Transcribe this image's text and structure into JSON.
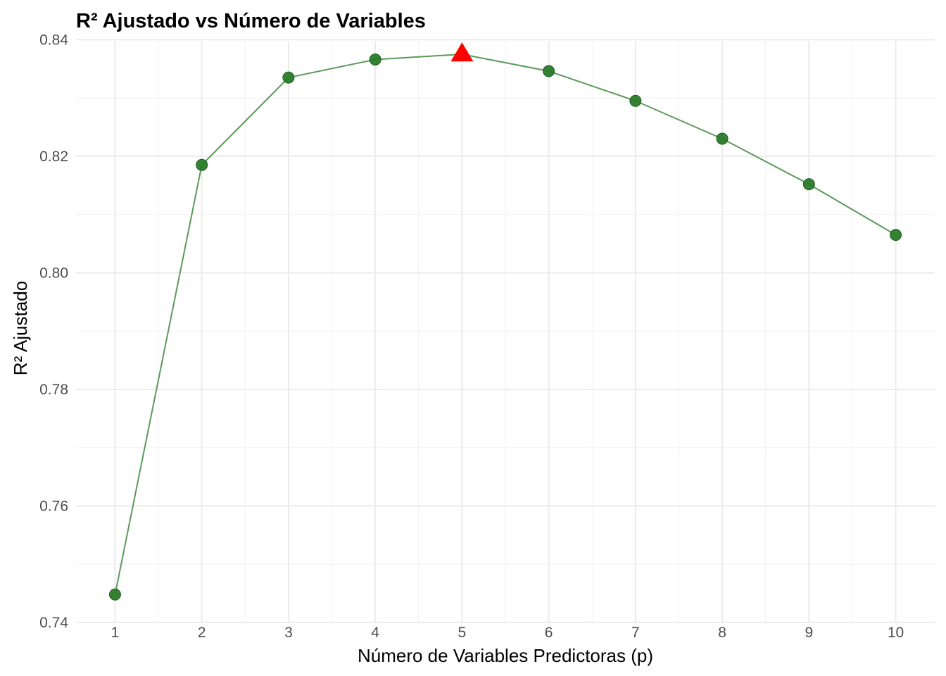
{
  "chart_data": {
    "type": "line",
    "title": "R² Ajustado vs Número de Variables",
    "xlabel": "Número de Variables Predictoras (p)",
    "ylabel": "R² Ajustado",
    "x": [
      1,
      2,
      3,
      4,
      5,
      6,
      7,
      8,
      9,
      10
    ],
    "x_ticks": [
      "1",
      "2",
      "3",
      "4",
      "5",
      "6",
      "7",
      "8",
      "9",
      "10"
    ],
    "y_ticks": [
      "0.74",
      "0.76",
      "0.78",
      "0.80",
      "0.82",
      "0.84"
    ],
    "y_tick_values": [
      0.74,
      0.76,
      0.78,
      0.8,
      0.82,
      0.84
    ],
    "xlim": [
      0.55,
      10.45
    ],
    "ylim": [
      0.74,
      0.8398
    ],
    "grid": true,
    "series": [
      {
        "values": [
          0.7448,
          0.8185,
          0.8335,
          0.8366,
          0.8375,
          0.8346,
          0.8295,
          0.823,
          0.8152,
          0.8065
        ],
        "line_color": "#5a9a5a",
        "point_color": "#2a7a2a",
        "marker": "circle"
      }
    ],
    "highlight": {
      "x": 5,
      "y": 0.8375,
      "marker": "triangle",
      "color": "#ff0000"
    }
  }
}
